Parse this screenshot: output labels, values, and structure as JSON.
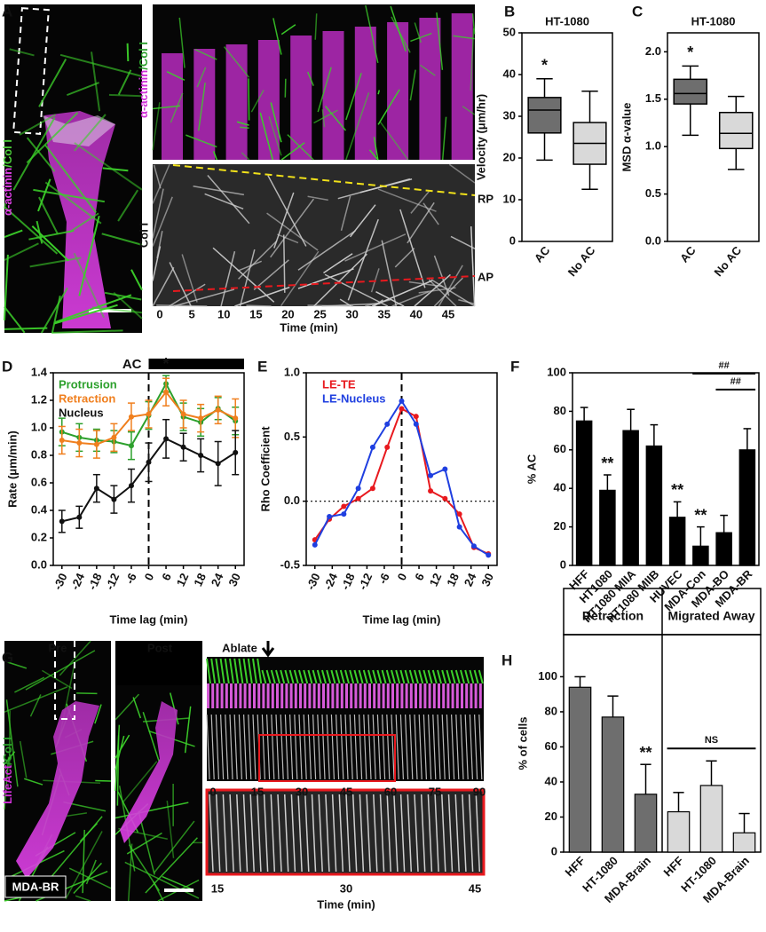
{
  "figure": {
    "panel_a": {
      "letter": "A",
      "stain": [
        "α-actinin",
        "/Col I"
      ],
      "kymo_stain": [
        "α-actinin",
        "/Col I"
      ],
      "gray_stain": "Col I",
      "rp": "RP",
      "ap": "AP",
      "times": [
        0,
        5,
        10,
        15,
        20,
        25,
        30,
        35,
        40,
        45
      ],
      "time_label": "Time (min)"
    },
    "panel_g": {
      "letter": "G",
      "pre": "Pre",
      "post": "Post",
      "ablate": "Ablate",
      "stain": [
        "LifeAct",
        "/Col I"
      ],
      "cell": "MDA-BR",
      "times": [
        0,
        15,
        30,
        45,
        60,
        75,
        90
      ],
      "zoom_times": [
        15,
        30,
        45
      ],
      "time_label": "Time (min)"
    }
  },
  "chart_data": [
    {
      "type": "box",
      "label": "B",
      "title": "HT-1080",
      "y_label": "Velocity (μm/hr)",
      "categories": [
        "AC",
        "No AC"
      ],
      "min": [
        19.5,
        12.5
      ],
      "q1": [
        26,
        18.5
      ],
      "median": [
        31.5,
        23.5
      ],
      "q3": [
        34.5,
        28.5
      ],
      "max": [
        39,
        36
      ],
      "colors": [
        "#6e6e6e",
        "#d9d9d9"
      ],
      "ylim": [
        0,
        50
      ],
      "yticks": [
        0,
        10,
        20,
        30,
        40,
        50
      ],
      "annotations": [
        {
          "text": "*",
          "category": "AC"
        }
      ]
    },
    {
      "type": "box",
      "label": "C",
      "title": "HT-1080",
      "y_label": "MSD α-value",
      "categories": [
        "AC",
        "No AC"
      ],
      "min": [
        1.12,
        0.76
      ],
      "q1": [
        1.45,
        0.98
      ],
      "median": [
        1.56,
        1.14
      ],
      "q3": [
        1.71,
        1.36
      ],
      "max": [
        1.85,
        1.53
      ],
      "colors": [
        "#6e6e6e",
        "#d9d9d9"
      ],
      "ylim": [
        0,
        2.2
      ],
      "yticks": [
        {
          "value": 0,
          "label": "0.0"
        },
        0.5,
        {
          "value": 1,
          "label": "1.0"
        },
        1.5,
        {
          "value": 2,
          "label": "2.0"
        }
      ],
      "annotations": [
        {
          "text": "*",
          "category": "AC"
        }
      ]
    },
    {
      "type": "line",
      "label": "D",
      "x_label": "Time lag (min)",
      "y_label": "Rate (μm/min)",
      "x": [
        -30,
        -24,
        -18,
        -12,
        -6,
        0,
        6,
        12,
        18,
        24,
        30
      ],
      "xlim": [
        -33,
        33
      ],
      "xticks": [
        -30,
        -24,
        -18,
        -12,
        -6,
        0,
        6,
        12,
        18,
        24,
        30
      ],
      "ylim": [
        0,
        1.4
      ],
      "yticks": [
        {
          "value": 0,
          "label": "0.0"
        },
        0.2,
        0.4,
        0.6,
        0.8,
        {
          "value": 1,
          "label": "1.0"
        },
        1.2,
        1.4
      ],
      "legend": "upper left",
      "vline": 0,
      "ac_bar": {
        "text": "AC",
        "from": 0
      },
      "annotations": [
        {
          "text": "*",
          "x": 6
        }
      ],
      "series": [
        {
          "name": "Protrusion",
          "color": "#2ca02c",
          "values": [
            0.97,
            0.93,
            0.91,
            0.9,
            0.87,
            1.09,
            1.32,
            1.08,
            1.04,
            1.14,
            1.05
          ],
          "errors": [
            0.1,
            0.1,
            0.08,
            0.08,
            0.1,
            0.1,
            0.06,
            0.1,
            0.1,
            0.08,
            0.1
          ]
        },
        {
          "name": "Retraction",
          "color": "#f07f1e",
          "values": [
            0.91,
            0.89,
            0.88,
            0.93,
            1.08,
            1.1,
            1.26,
            1.1,
            1.07,
            1.13,
            1.07
          ],
          "errors": [
            0.1,
            0.1,
            0.1,
            0.1,
            0.1,
            0.1,
            0.1,
            0.1,
            0.1,
            0.1,
            0.14
          ]
        },
        {
          "name": "Nucleus",
          "color": "#111111",
          "values": [
            0.32,
            0.35,
            0.56,
            0.48,
            0.58,
            0.75,
            0.92,
            0.86,
            0.8,
            0.74,
            0.82
          ],
          "errors": [
            0.08,
            0.08,
            0.1,
            0.1,
            0.12,
            0.14,
            0.14,
            0.1,
            0.12,
            0.16,
            0.16
          ]
        }
      ]
    },
    {
      "type": "line",
      "label": "E",
      "x_label": "Time lag (min)",
      "y_label": "Rho Coefficient",
      "x": [
        -30,
        -25,
        -20,
        -15,
        -10,
        -5,
        0,
        5,
        10,
        15,
        20,
        25,
        30
      ],
      "xlim": [
        -33,
        33
      ],
      "xticks": [
        -30,
        -24,
        -18,
        -12,
        -6,
        0,
        6,
        12,
        18,
        24,
        30
      ],
      "ylim": [
        -0.5,
        1
      ],
      "yticks": [
        -0.5,
        {
          "value": 0,
          "label": "0.0"
        },
        0.5,
        {
          "value": 1,
          "label": "1.0"
        }
      ],
      "legend": "upper left",
      "vline": 0,
      "hline": 0,
      "series": [
        {
          "name": "LE-TE",
          "color": "#e8191e",
          "values": [
            -0.3,
            -0.14,
            -0.04,
            0.02,
            0.1,
            0.42,
            0.72,
            0.66,
            0.08,
            0.02,
            -0.1,
            -0.36,
            -0.41
          ]
        },
        {
          "name": "LE-Nucleus",
          "color": "#1f3fe0",
          "values": [
            -0.34,
            -0.12,
            -0.1,
            0.1,
            0.42,
            0.6,
            0.78,
            0.6,
            0.2,
            0.25,
            -0.2,
            -0.35,
            -0.42
          ]
        }
      ]
    },
    {
      "type": "bar",
      "label": "F",
      "y_label": "% AC",
      "categories": [
        "HFF",
        "HT1080",
        "HT1080 MIIA",
        "HT1080 MIIB",
        "HUVEC",
        "MDA-Con",
        "MDA-BO",
        "MDA-BR"
      ],
      "values": [
        75,
        39,
        70,
        62,
        25,
        10,
        17,
        60
      ],
      "errors": [
        7,
        8,
        11,
        11,
        8,
        10,
        9,
        11
      ],
      "color": "#000000",
      "ylim": [
        0,
        100
      ],
      "yticks": [
        0,
        20,
        40,
        60,
        80,
        100
      ],
      "annotations": [
        {
          "text": "**",
          "category": "HT1080"
        },
        {
          "text": "**",
          "category": "HUVEC"
        },
        {
          "text": "**",
          "category": "MDA-Con"
        }
      ],
      "brackets": [
        {
          "text": "##",
          "from": "MDA-Con",
          "to": "MDA-BR"
        },
        {
          "text": "##",
          "from": "MDA-BO",
          "to": "MDA-BR"
        }
      ]
    },
    {
      "type": "bar",
      "label": "H",
      "y_label": "% of cells",
      "categories": [
        "HFF",
        "HT-1080",
        "MDA-Brain",
        "HFF",
        "HT-1080",
        "MDA-Brain"
      ],
      "values": [
        94,
        77,
        33,
        23,
        38,
        11
      ],
      "errors": [
        6,
        12,
        17,
        11,
        14,
        11
      ],
      "colors": [
        "#6e6e6e",
        "#6e6e6e",
        "#6e6e6e",
        "#d9d9d9",
        "#d9d9d9",
        "#d9d9d9"
      ],
      "ylim": [
        0,
        124
      ],
      "yticks": [
        0,
        20,
        40,
        60,
        80,
        100
      ],
      "groups": [
        {
          "name": "Retraction",
          "from": 0,
          "to": 2
        },
        {
          "name": "Migrated Away",
          "from": 3,
          "to": 5
        }
      ],
      "annotations": [
        {
          "text": "**",
          "index": 2
        }
      ],
      "brackets": [
        {
          "text": "NS",
          "from": 3,
          "to": 5
        }
      ]
    }
  ]
}
